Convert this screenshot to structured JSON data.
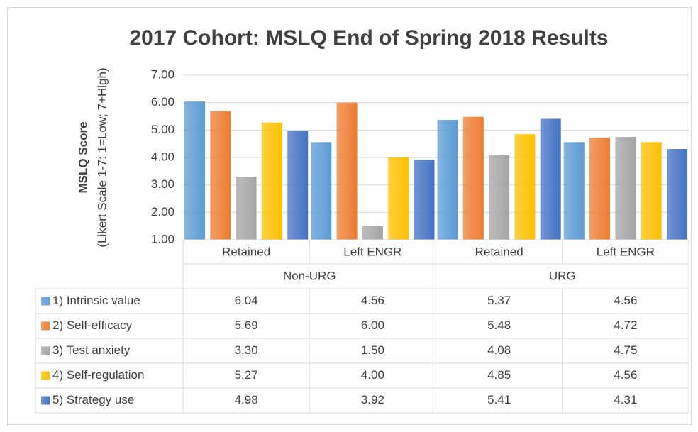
{
  "chart_data": {
    "type": "bar",
    "title": "2017 Cohort:  MSLQ End of Spring 2018 Results",
    "y_label": "MSLQ Score",
    "y_sublabel": "(Likert Scale 1-7: 1=Low; 7+High)",
    "categories": [
      "Retained",
      "Left ENGR",
      "Retained",
      "Left ENGR"
    ],
    "groups": [
      "Non-URG",
      "URG"
    ],
    "ylim": [
      1,
      7
    ],
    "yticks": [
      {
        "value": 1,
        "label": "1.00"
      },
      {
        "value": 2,
        "label": "2.00"
      },
      {
        "value": 3,
        "label": "3.00"
      },
      {
        "value": 4,
        "label": "4.00"
      },
      {
        "value": 5,
        "label": "5.00"
      },
      {
        "value": 6,
        "label": "6.00"
      },
      {
        "value": 7,
        "label": "7.00"
      }
    ],
    "grid": true,
    "series": [
      {
        "name": "1) Intrinsic value",
        "color": "#5b9bd5",
        "values": [
          6.04,
          4.56,
          5.37,
          4.56
        ],
        "value_labels": [
          "6.04",
          "4.56",
          "5.37",
          "4.56"
        ]
      },
      {
        "name": "2) Self-efficacy",
        "color": "#ed7d31",
        "values": [
          5.69,
          6,
          5.48,
          4.72
        ],
        "value_labels": [
          "5.69",
          "6.00",
          "5.48",
          "4.72"
        ]
      },
      {
        "name": "3) Test anxiety",
        "color": "#a5a5a5",
        "values": [
          3.3,
          1.5,
          4.08,
          4.75
        ],
        "value_labels": [
          "3.30",
          "1.50",
          "4.08",
          "4.75"
        ]
      },
      {
        "name": "4) Self-regulation",
        "color": "#ffc000",
        "values": [
          5.27,
          4,
          4.85,
          4.56
        ],
        "value_labels": [
          "5.27",
          "4.00",
          "4.85",
          "4.56"
        ]
      },
      {
        "name": "5) Strategy use",
        "color": "#4472c4",
        "values": [
          4.98,
          3.92,
          5.41,
          4.31
        ],
        "value_labels": [
          "4.98",
          "3.92",
          "5.41",
          "4.31"
        ]
      }
    ]
  }
}
